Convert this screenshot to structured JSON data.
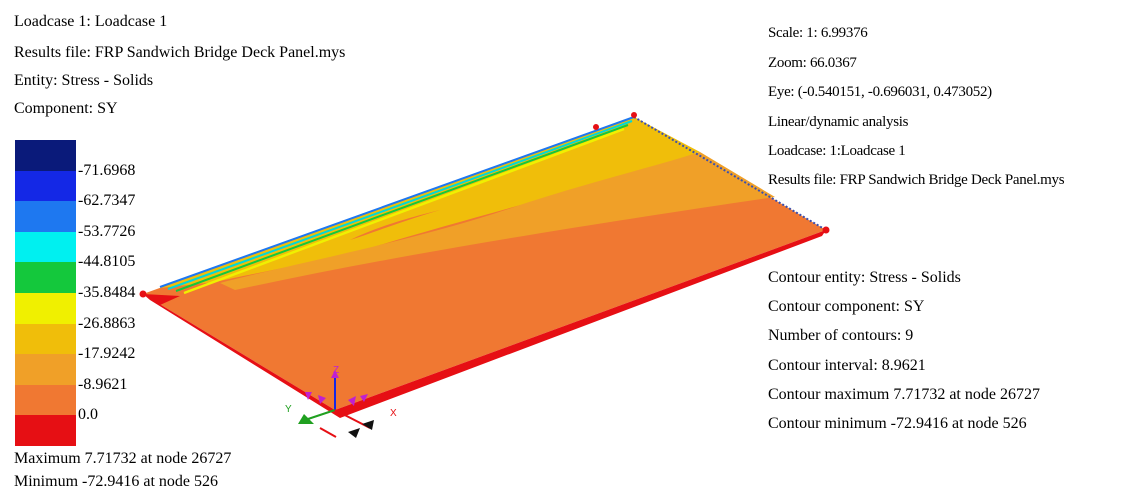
{
  "header_left": {
    "loadcase": "Loadcase 1: Loadcase 1",
    "results_file": "Results file: FRP Sandwich Bridge Deck Panel.mys",
    "entity": "Entity: Stress - Solids",
    "component": "Component: SY"
  },
  "header_right": {
    "scale": "Scale: 1: 6.99376",
    "zoom": "Zoom: 66.0367",
    "eye": "Eye: (-0.540151, -0.696031, 0.473052)",
    "analysis": "Linear/dynamic analysis",
    "loadcase": "Loadcase: 1:Loadcase 1",
    "results_file": "Results file: FRP Sandwich Bridge Deck Panel.mys"
  },
  "contour_info": {
    "entity": "Contour entity: Stress - Solids",
    "component": "Contour component: SY",
    "count": "Number of contours: 9",
    "interval": "Contour interval: 8.9621",
    "maximum": "Contour maximum 7.71732 at node 26727",
    "minimum": "Contour minimum -72.9416 at node 526"
  },
  "legend": {
    "colors": [
      "#0a1a7a",
      "#1428e6",
      "#1e78f0",
      "#00f0f0",
      "#14c83c",
      "#f0f000",
      "#f0be0a",
      "#f0a028",
      "#f07832",
      "#e60f14"
    ],
    "labels": [
      "-71.6968",
      "-62.7347",
      "-53.7726",
      "-44.8105",
      "-35.8484",
      "-26.8863",
      "-17.9242",
      "-8.9621",
      "0.0"
    ]
  },
  "footer": {
    "maximum": "Maximum 7.71732 at node 26727",
    "minimum": "Minimum -72.9416 at node 526"
  },
  "axes": {
    "x": "X",
    "y": "Y",
    "z": "Z"
  }
}
